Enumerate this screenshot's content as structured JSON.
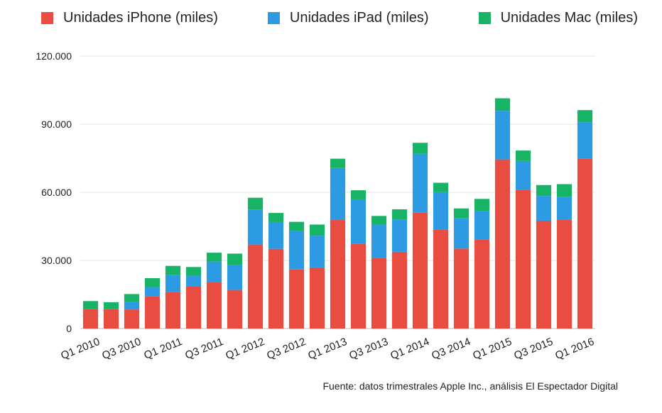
{
  "legend": [
    {
      "label": "Unidades iPhone (miles)",
      "color": "#e94c40"
    },
    {
      "label": "Unidades iPad (miles)",
      "color": "#2c9be3"
    },
    {
      "label": "Unidades Mac (miles)",
      "color": "#16b464"
    }
  ],
  "source": "Fuente: datos trimestrales Apple Inc., análisis El Espectador Digital",
  "chart_data": {
    "type": "bar",
    "stacked": true,
    "title": "",
    "xlabel": "",
    "ylabel": "",
    "ylim": [
      0,
      120000
    ],
    "yticks": [
      0,
      30000,
      60000,
      90000,
      120000
    ],
    "ytick_labels": [
      "0",
      "30.000",
      "60.000",
      "90.000",
      "120.000"
    ],
    "grid": true,
    "legend_position": "top",
    "categories": [
      "Q1 2010",
      "Q2 2010",
      "Q3 2010",
      "Q4 2010",
      "Q1 2011",
      "Q2 2011",
      "Q3 2011",
      "Q4 2011",
      "Q1 2012",
      "Q2 2012",
      "Q3 2012",
      "Q4 2012",
      "Q1 2013",
      "Q2 2013",
      "Q3 2013",
      "Q4 2013",
      "Q1 2014",
      "Q2 2014",
      "Q3 2014",
      "Q4 2014",
      "Q1 2015",
      "Q2 2015",
      "Q3 2015",
      "Q4 2015",
      "Q1 2016"
    ],
    "labeled_ticks": [
      "Q1 2010",
      "Q3 2010",
      "Q1 2011",
      "Q3 2011",
      "Q1 2012",
      "Q3 2012",
      "Q1 2013",
      "Q3 2013",
      "Q1 2014",
      "Q3 2014",
      "Q1 2015",
      "Q3 2015",
      "Q1 2016"
    ],
    "series": [
      {
        "name": "Unidades iPhone (miles)",
        "color": "#e94c40",
        "values": [
          8700,
          8700,
          8400,
          14100,
          16200,
          18600,
          20300,
          17000,
          37000,
          35100,
          26000,
          26900,
          47800,
          37400,
          31200,
          33800,
          51000,
          43700,
          35200,
          39300,
          74500,
          61200,
          47500,
          48000,
          74800
        ]
      },
      {
        "name": "Unidades iPad (miles)",
        "color": "#2c9be3",
        "values": [
          0,
          0,
          3300,
          4200,
          7300,
          4700,
          9200,
          11100,
          15400,
          11800,
          17000,
          14000,
          22900,
          19500,
          14600,
          14100,
          26000,
          16400,
          13300,
          12300,
          21400,
          12600,
          10900,
          9900,
          16100
        ]
      },
      {
        "name": "Unidades Mac (miles)",
        "color": "#16b464",
        "values": [
          3400,
          2900,
          3500,
          3900,
          4100,
          3800,
          3900,
          4900,
          5200,
          4000,
          4000,
          4900,
          4100,
          4000,
          3800,
          4600,
          4800,
          4100,
          4400,
          5500,
          5500,
          4600,
          4800,
          5700,
          5300
        ]
      }
    ]
  }
}
